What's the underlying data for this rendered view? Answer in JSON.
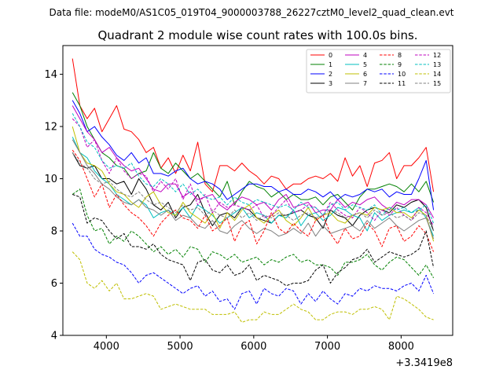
{
  "suptitle": "Data file: modeM0/AS1C05_019T04_9000003788_26227cztM0_level2_quad_clean.evt",
  "chart_data": {
    "type": "line",
    "title": "Quadrant 2 module wise count rates with 100.0s bins.",
    "xlabel": "",
    "ylabel": "",
    "x_offset_label": "+3.3419e8",
    "xlim": [
      3410,
      8700
    ],
    "ylim": [
      4,
      15.1
    ],
    "xticks": [
      4000,
      5000,
      6000,
      7000,
      8000
    ],
    "xtick_labels": [
      "4000",
      "5000",
      "6000",
      "7000",
      "8000"
    ],
    "yticks": [
      4,
      6,
      8,
      10,
      12,
      14
    ],
    "ytick_labels": [
      "4",
      "6",
      "8",
      "10",
      "12",
      "14"
    ],
    "grid": false,
    "legend_position": "top-right",
    "x_start": 3540,
    "x_step": 100,
    "series": [
      {
        "name": "0",
        "color": "#ff0000",
        "dash": "solid",
        "values": [
          14.6,
          12.8,
          12.3,
          12.7,
          11.8,
          12.3,
          12.8,
          11.9,
          11.8,
          11.5,
          11.0,
          11.2,
          10.4,
          10.8,
          10.2,
          10.9,
          10.3,
          11.4,
          9.8,
          9.5,
          10.5,
          10.5,
          10.3,
          10.6,
          10.3,
          10.1,
          9.8,
          10.1,
          10.0,
          9.6,
          9.8,
          9.8,
          10.0,
          10.1,
          10.0,
          10.2,
          9.9,
          10.8,
          10.1,
          10.5,
          9.7,
          10.6,
          10.7,
          11.0,
          10.0,
          10.5,
          10.5,
          10.8,
          11.2,
          9.5
        ]
      },
      {
        "name": "1",
        "color": "#008000",
        "dash": "solid",
        "values": [
          13.3,
          12.8,
          12.0,
          11.5,
          11.0,
          10.8,
          10.5,
          10.4,
          10.0,
          10.2,
          10.3,
          11.0,
          10.4,
          10.2,
          10.6,
          10.3,
          10.0,
          10.2,
          9.9,
          9.6,
          9.3,
          9.9,
          9.0,
          9.5,
          9.9,
          9.7,
          9.6,
          9.3,
          9.5,
          9.2,
          9.4,
          9.2,
          9.2,
          9.3,
          9.0,
          9.3,
          9.4,
          9.1,
          8.8,
          9.3,
          9.6,
          9.6,
          9.7,
          9.8,
          9.7,
          9.5,
          9.8,
          9.5,
          9.9,
          9.1
        ]
      },
      {
        "name": "2",
        "color": "#0000ff",
        "dash": "solid",
        "values": [
          13.0,
          12.5,
          11.8,
          12.0,
          11.6,
          11.3,
          10.9,
          10.7,
          11.0,
          10.6,
          10.8,
          10.2,
          10.2,
          10.1,
          10.3,
          10.4,
          10.0,
          9.8,
          9.9,
          9.8,
          9.6,
          9.2,
          9.4,
          9.6,
          9.8,
          9.8,
          9.7,
          9.7,
          9.5,
          9.6,
          9.4,
          9.4,
          9.6,
          9.5,
          9.3,
          9.5,
          9.2,
          9.4,
          9.3,
          9.4,
          9.6,
          9.5,
          9.6,
          9.3,
          9.5,
          9.4,
          9.4,
          10.0,
          10.7,
          8.8
        ]
      },
      {
        "name": "3",
        "color": "#000000",
        "dash": "solid",
        "values": [
          11.0,
          10.5,
          10.4,
          10.5,
          10.0,
          10.0,
          9.8,
          9.9,
          9.4,
          10.0,
          9.6,
          9.0,
          8.8,
          9.1,
          8.5,
          8.9,
          9.0,
          9.4,
          8.7,
          8.2,
          8.6,
          8.7,
          8.5,
          8.9,
          8.8,
          8.5,
          8.4,
          8.3,
          8.6,
          8.6,
          8.7,
          8.8,
          8.6,
          8.5,
          8.1,
          8.8,
          8.6,
          8.5,
          8.2,
          8.6,
          8.8,
          8.9,
          8.8,
          8.7,
          9.0,
          8.9,
          9.1,
          9.2,
          8.9,
          8.0
        ]
      },
      {
        "name": "4",
        "color": "#bf00bf",
        "dash": "solid",
        "values": [
          12.8,
          12.3,
          11.8,
          11.5,
          11.0,
          11.2,
          10.8,
          10.5,
          10.3,
          10.4,
          10.0,
          9.6,
          9.5,
          9.8,
          9.8,
          9.3,
          9.5,
          9.2,
          9.3,
          9.4,
          9.0,
          8.8,
          9.1,
          9.3,
          9.2,
          9.0,
          9.1,
          8.8,
          9.2,
          9.4,
          8.9,
          9.0,
          9.1,
          8.7,
          8.8,
          8.8,
          9.2,
          8.9,
          9.1,
          9.0,
          9.2,
          9.3,
          9.0,
          8.8,
          9.1,
          9.0,
          9.2,
          9.2,
          9.0,
          8.5
        ]
      },
      {
        "name": "5",
        "color": "#00bfbf",
        "dash": "solid",
        "values": [
          11.6,
          11.0,
          10.8,
          10.3,
          10.0,
          9.8,
          9.4,
          9.2,
          9.0,
          9.2,
          9.0,
          8.5,
          8.7,
          8.8,
          8.6,
          8.9,
          8.5,
          9.0,
          8.8,
          8.6,
          8.3,
          8.5,
          8.7,
          8.9,
          8.5,
          8.7,
          8.6,
          8.3,
          8.6,
          8.5,
          8.8,
          8.2,
          8.6,
          8.7,
          8.4,
          8.6,
          8.9,
          8.8,
          8.6,
          8.5,
          8.0,
          8.7,
          8.4,
          8.6,
          8.7,
          8.8,
          8.7,
          8.9,
          8.5,
          7.8
        ]
      },
      {
        "name": "6",
        "color": "#bfbf00",
        "dash": "solid",
        "values": [
          12.0,
          11.0,
          10.6,
          10.5,
          10.3,
          9.8,
          9.5,
          9.4,
          9.1,
          8.9,
          9.3,
          9.5,
          9.0,
          8.7,
          8.6,
          9.1,
          8.7,
          8.5,
          8.3,
          8.7,
          8.1,
          8.7,
          8.4,
          8.8,
          9.0,
          8.5,
          8.3,
          8.6,
          8.8,
          8.4,
          8.2,
          8.5,
          8.9,
          8.4,
          8.6,
          8.7,
          8.4,
          8.3,
          8.6,
          8.7,
          8.6,
          8.9,
          8.8,
          8.9,
          8.7,
          8.7,
          8.5,
          8.8,
          8.6,
          7.6
        ]
      },
      {
        "name": "7",
        "color": "#808080",
        "dash": "solid",
        "values": [
          11.5,
          11.0,
          10.5,
          10.2,
          9.8,
          9.6,
          9.3,
          9.1,
          9.0,
          9.2,
          8.9,
          8.8,
          8.6,
          8.8,
          8.4,
          8.6,
          8.5,
          8.2,
          8.1,
          8.4,
          8.0,
          7.9,
          8.2,
          8.4,
          8.1,
          7.9,
          8.1,
          8.0,
          7.8,
          7.9,
          8.1,
          7.9,
          8.3,
          7.8,
          8.2,
          7.9,
          8.0,
          8.1,
          8.2,
          8.0,
          8.4,
          8.1,
          8.3,
          8.5,
          8.2,
          8.0,
          8.2,
          8.4,
          8.5,
          7.7
        ]
      },
      {
        "name": "8",
        "color": "#ff0000",
        "dash": "dashed",
        "values": [
          11.1,
          10.7,
          10.0,
          9.3,
          9.8,
          8.9,
          9.4,
          9.0,
          8.7,
          8.5,
          8.2,
          7.8,
          8.3,
          8.6,
          8.8,
          8.5,
          8.4,
          8.1,
          8.6,
          8.0,
          8.2,
          8.5,
          7.6,
          8.2,
          8.4,
          7.5,
          8.0,
          8.7,
          8.1,
          7.9,
          8.3,
          8.0,
          7.8,
          8.4,
          8.6,
          7.9,
          7.5,
          8.1,
          7.7,
          7.8,
          8.3,
          8.0,
          7.4,
          8.1,
          8.2,
          7.6,
          7.8,
          8.2,
          7.9,
          7.2
        ]
      },
      {
        "name": "9",
        "color": "#008000",
        "dash": "dashed",
        "values": [
          9.4,
          9.6,
          8.6,
          8.0,
          8.1,
          7.5,
          7.8,
          7.6,
          8.0,
          7.8,
          7.5,
          7.2,
          7.4,
          7.1,
          7.3,
          7.0,
          7.4,
          7.3,
          6.8,
          7.2,
          7.1,
          6.9,
          7.1,
          6.8,
          6.9,
          7.0,
          6.7,
          6.9,
          6.8,
          7.0,
          7.1,
          6.8,
          6.9,
          6.7,
          6.7,
          6.6,
          6.3,
          6.8,
          6.8,
          6.9,
          7.1,
          6.7,
          6.5,
          6.8,
          7.0,
          6.9,
          6.6,
          6.3,
          6.7,
          6.2
        ]
      },
      {
        "name": "10",
        "color": "#0000ff",
        "dash": "dashed",
        "values": [
          8.3,
          7.8,
          7.8,
          7.3,
          7.1,
          7.0,
          6.8,
          6.7,
          6.4,
          6.0,
          6.3,
          6.4,
          6.2,
          6.0,
          5.8,
          5.6,
          5.8,
          5.9,
          5.5,
          5.7,
          5.3,
          5.4,
          5.0,
          5.6,
          5.7,
          5.2,
          5.8,
          5.6,
          5.5,
          5.8,
          5.7,
          5.2,
          5.6,
          5.3,
          5.7,
          5.4,
          5.2,
          5.6,
          5.5,
          5.8,
          5.7,
          5.9,
          5.8,
          5.8,
          5.7,
          5.9,
          6.0,
          5.7,
          6.3,
          5.6
        ]
      },
      {
        "name": "11",
        "color": "#000000",
        "dash": "dashed",
        "values": [
          9.4,
          9.3,
          8.3,
          8.5,
          8.4,
          8.0,
          7.7,
          7.9,
          7.4,
          7.4,
          7.3,
          7.5,
          7.1,
          6.9,
          6.8,
          6.7,
          6.1,
          6.8,
          6.9,
          6.5,
          6.4,
          6.7,
          6.3,
          6.4,
          6.7,
          6.1,
          6.3,
          6.2,
          6.1,
          5.9,
          6.0,
          6.0,
          6.1,
          6.5,
          6.7,
          6.0,
          6.4,
          6.6,
          6.9,
          7.0,
          7.3,
          6.8,
          7.0,
          7.2,
          7.1,
          7.0,
          7.1,
          7.3,
          8.0,
          6.6
        ]
      },
      {
        "name": "12",
        "color": "#bf00bf",
        "dash": "dashed",
        "values": [
          12.3,
          12.0,
          11.2,
          11.5,
          10.7,
          10.2,
          10.8,
          10.3,
          10.0,
          10.2,
          10.1,
          9.5,
          9.9,
          9.6,
          10.0,
          9.2,
          9.8,
          9.0,
          9.4,
          8.7,
          9.1,
          8.9,
          9.0,
          8.9,
          8.8,
          9.0,
          8.5,
          8.6,
          8.9,
          9.2,
          8.7,
          8.8,
          9.0,
          8.9,
          8.6,
          9.1,
          8.8,
          8.6,
          8.5,
          8.9,
          8.7,
          8.4,
          8.8,
          8.6,
          8.9,
          8.6,
          8.4,
          8.9,
          8.7,
          8.2
        ]
      },
      {
        "name": "13",
        "color": "#00bfbf",
        "dash": "dashed",
        "values": [
          12.5,
          12.0,
          11.4,
          11.2,
          10.7,
          10.4,
          10.5,
          10.4,
          10.6,
          10.1,
          9.8,
          9.7,
          10.0,
          9.8,
          9.5,
          9.8,
          9.4,
          9.6,
          9.3,
          9.2,
          9.3,
          9.0,
          9.3,
          9.1,
          9.0,
          9.2,
          9.1,
          9.0,
          8.9,
          9.0,
          8.8,
          9.1,
          8.9,
          8.9,
          8.6,
          9.0,
          9.1,
          8.8,
          9.0,
          8.9,
          8.8,
          9.0,
          8.6,
          8.9,
          8.8,
          8.9,
          8.7,
          8.8,
          9.0,
          8.3
        ]
      },
      {
        "name": "14",
        "color": "#bfbf00",
        "dash": "dashed",
        "values": [
          7.2,
          6.9,
          6.0,
          5.8,
          6.1,
          5.7,
          6.0,
          5.4,
          5.4,
          5.5,
          5.6,
          5.5,
          5.0,
          5.1,
          5.2,
          5.1,
          5.0,
          5.0,
          5.0,
          4.8,
          4.8,
          4.8,
          4.9,
          4.5,
          4.6,
          4.6,
          4.9,
          4.8,
          4.8,
          5.0,
          5.2,
          5.0,
          4.9,
          4.6,
          4.6,
          4.8,
          4.9,
          4.9,
          4.8,
          5.0,
          5.0,
          5.1,
          5.0,
          4.6,
          5.5,
          5.4,
          5.2,
          5.0,
          4.7,
          4.6
        ]
      },
      {
        "name": "15",
        "color": "#808080",
        "dash": "dashed",
        "values": [
          11.0,
          10.6,
          10.4,
          10.0,
          9.8,
          9.9,
          9.6,
          9.4,
          9.3,
          9.5,
          9.2,
          9.0,
          9.1,
          8.9,
          8.7,
          9.0,
          8.8,
          8.9,
          8.6,
          8.8,
          8.6,
          8.5,
          8.8,
          8.5,
          8.7,
          8.4,
          8.6,
          8.5,
          8.7,
          8.6,
          8.4,
          8.6,
          8.7,
          8.5,
          8.6,
          8.8,
          8.7,
          8.5,
          8.6,
          8.7,
          8.5,
          8.8,
          8.6,
          8.7,
          8.5,
          8.6,
          8.4,
          8.7,
          8.6,
          8.0
        ]
      }
    ]
  }
}
